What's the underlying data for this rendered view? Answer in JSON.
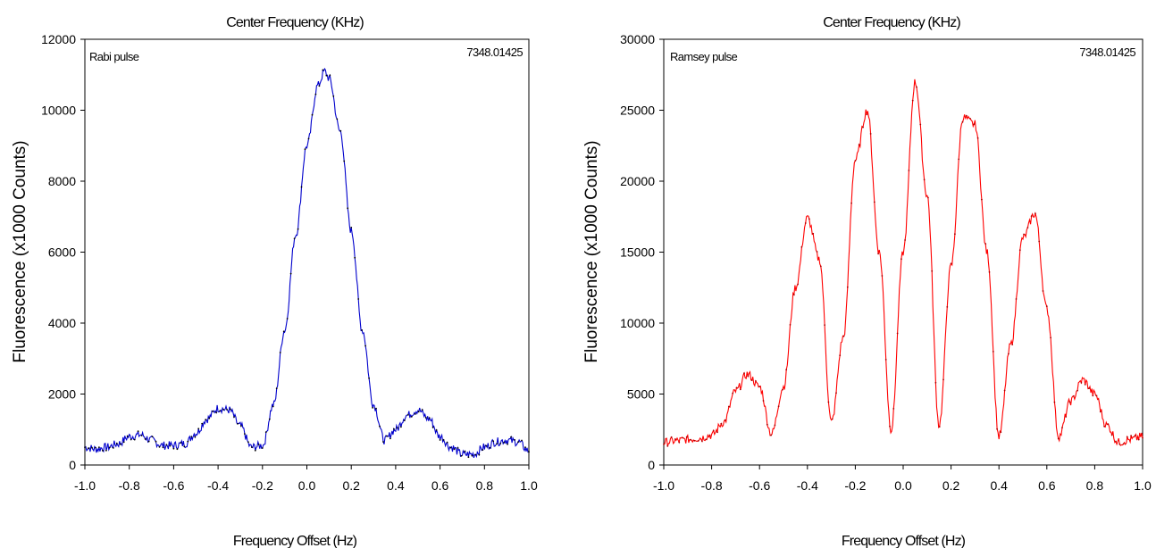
{
  "chart_data": [
    {
      "type": "line",
      "top_label": "Center Frequency (KHz)",
      "xlabel": "Frequency Offset (Hz)",
      "ylabel": "Fluorescence (x1000 Counts)",
      "inset_label": "Rabi pulse",
      "center_value": "7348.01425",
      "xlim": [
        -1.0,
        1.0
      ],
      "ylim": [
        0,
        12000
      ],
      "x_ticks": [
        "-1.0",
        "-0.8",
        "-0.6",
        "-0.4",
        "-0.2",
        "0.0",
        "0.2",
        "0.4",
        "0.6",
        "0.8",
        "1.0"
      ],
      "y_ticks": [
        "0",
        "2000",
        "4000",
        "6000",
        "8000",
        "10000",
        "12000"
      ],
      "grid": false,
      "colors": {
        "line": "#0000cc",
        "markers": "#000000"
      },
      "series": [
        {
          "x": [
            -1.0,
            -0.95,
            -0.9,
            -0.85,
            -0.8,
            -0.75,
            -0.7,
            -0.65,
            -0.6,
            -0.55,
            -0.5,
            -0.45,
            -0.4,
            -0.35,
            -0.3,
            -0.25,
            -0.2,
            -0.15,
            -0.1,
            -0.05,
            0.0,
            0.05,
            0.08,
            0.1,
            0.15,
            0.2,
            0.25,
            0.3,
            0.35,
            0.4,
            0.45,
            0.5,
            0.55,
            0.6,
            0.65,
            0.7,
            0.75,
            0.8,
            0.85,
            0.9,
            0.95,
            1.0
          ],
          "y": [
            500,
            450,
            500,
            600,
            800,
            850,
            700,
            550,
            550,
            600,
            900,
            1300,
            1600,
            1550,
            1100,
            500,
            550,
            1700,
            3800,
            6500,
            9000,
            10700,
            11100,
            10900,
            9400,
            6600,
            3800,
            1700,
            700,
            1000,
            1400,
            1550,
            1300,
            800,
            500,
            300,
            300,
            500,
            650,
            700,
            650,
            400
          ]
        }
      ]
    },
    {
      "type": "line",
      "top_label": "Center Frequency (KHz)",
      "xlabel": "Frequency Offset (Hz)",
      "ylabel": "Fluorescence (x1000 Counts)",
      "inset_label": "Ramsey pulse",
      "center_value": "7348.01425",
      "xlim": [
        -1.0,
        1.0
      ],
      "ylim": [
        0,
        30000
      ],
      "x_ticks": [
        "-1.0",
        "-0.8",
        "-0.6",
        "-0.4",
        "-0.2",
        "0.0",
        "0.2",
        "0.4",
        "0.6",
        "0.8",
        "1.0"
      ],
      "y_ticks": [
        "0",
        "5000",
        "10000",
        "15000",
        "20000",
        "25000",
        "30000"
      ],
      "grid": false,
      "colors": {
        "line": "#ff0000",
        "markers": "#aa0000"
      },
      "series": [
        {
          "x": [
            -1.0,
            -0.95,
            -0.9,
            -0.85,
            -0.8,
            -0.75,
            -0.7,
            -0.65,
            -0.6,
            -0.55,
            -0.5,
            -0.45,
            -0.4,
            -0.35,
            -0.3,
            -0.25,
            -0.2,
            -0.15,
            -0.1,
            -0.05,
            0.0,
            0.05,
            0.1,
            0.15,
            0.2,
            0.25,
            0.3,
            0.35,
            0.4,
            0.45,
            0.5,
            0.55,
            0.6,
            0.65,
            0.7,
            0.75,
            0.8,
            0.85,
            0.9,
            0.95,
            1.0
          ],
          "y": [
            1600,
            1700,
            1800,
            1900,
            2100,
            3000,
            5200,
            6400,
            5500,
            2200,
            5500,
            12500,
            17400,
            14500,
            3000,
            9000,
            21500,
            25000,
            15000,
            2500,
            15000,
            27000,
            19000,
            2800,
            14000,
            24500,
            24000,
            15000,
            2000,
            8500,
            16000,
            17700,
            11000,
            2000,
            4500,
            6000,
            5000,
            2800,
            1600,
            1800,
            2000
          ]
        }
      ]
    }
  ]
}
